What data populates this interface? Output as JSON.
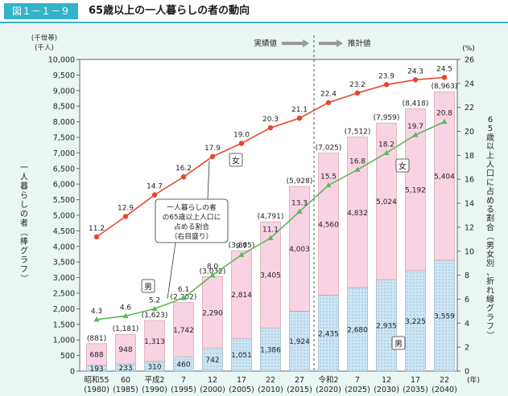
{
  "header": {
    "figure_label": "図１－１－９",
    "title": "65歳以上の一人暮らしの者の動向"
  },
  "chart_data": {
    "type": "bar+line",
    "categories": [
      {
        "era": "昭和55",
        "year": "(1980)"
      },
      {
        "era": "60",
        "year": "(1985)"
      },
      {
        "era": "平成2",
        "year": "(1990)"
      },
      {
        "era": "7",
        "year": "(1995)"
      },
      {
        "era": "12",
        "year": "(2000)"
      },
      {
        "era": "17",
        "year": "(2005)"
      },
      {
        "era": "22",
        "year": "(2010)"
      },
      {
        "era": "27",
        "year": "(2015)"
      },
      {
        "era": "令和2",
        "year": "(2020)"
      },
      {
        "era": "7",
        "year": "(2025)"
      },
      {
        "era": "12",
        "year": "(2030)"
      },
      {
        "era": "17",
        "year": "(2035)"
      },
      {
        "era": "22",
        "year": "(2040)"
      }
    ],
    "x_unit": "(年)",
    "bars": {
      "male": [
        193,
        233,
        310,
        460,
        742,
        1051,
        1386,
        1924,
        2435,
        2680,
        2935,
        3225,
        3559
      ],
      "female": [
        688,
        948,
        1313,
        1742,
        2290,
        2814,
        3405,
        4003,
        4560,
        4832,
        5024,
        5192,
        5404
      ],
      "total_labels": [
        "(881)",
        "(1,181)",
        "(1,623)",
        "(2,202)",
        "(3,032)",
        "(3,865)",
        "(4,791)",
        "(5,928)",
        "(7,025)",
        "(7,512)",
        "(7,959)",
        "(8,418)",
        "(8,963)"
      ],
      "male_labels": [
        "193",
        "233",
        "310",
        "460",
        "742",
        "1,051",
        "1,386",
        "1,924",
        "2,435",
        "2,680",
        "2,935",
        "3,225",
        "3,559"
      ],
      "female_labels": [
        "688",
        "948",
        "1,313",
        "1,742",
        "2,290",
        "2,814",
        "3,405",
        "4,003",
        "4,560",
        "4,832",
        "5,024",
        "5,192",
        "5,404"
      ],
      "male_color": "#cfe6f4",
      "female_color": "#f9d3e4"
    },
    "lines": {
      "female": [
        11.2,
        12.9,
        14.7,
        16.2,
        17.9,
        19.0,
        20.3,
        21.1,
        22.4,
        23.2,
        23.9,
        24.3,
        24.5
      ],
      "male": [
        4.3,
        4.6,
        5.2,
        6.1,
        8.0,
        9.7,
        11.1,
        13.3,
        15.5,
        16.8,
        18.2,
        19.7,
        20.8
      ],
      "female_labels": [
        "11.2",
        "12.9",
        "14.7",
        "16.2",
        "17.9",
        "19.0",
        "20.3",
        "21.1",
        "22.4",
        "23.2",
        "23.9",
        "24.3",
        "24.5"
      ],
      "male_labels": [
        "4.3",
        "4.6",
        "5.2",
        "6.1",
        "8.0",
        "9.7",
        "11.1",
        "13.3",
        "15.5",
        "16.8",
        "18.2",
        "19.7",
        "20.8"
      ],
      "female_color": "#e8452c",
      "male_color": "#5cb85c"
    },
    "left_axis": {
      "unit_line1": "(千世帯)",
      "unit_line2": "(千人)",
      "label": "一人暮らしの者（棒グラフ）",
      "range": [
        0,
        10000
      ],
      "ticks": [
        "0",
        "500",
        "1,000",
        "1,500",
        "2,000",
        "2,500",
        "3,000",
        "3,500",
        "4,000",
        "4,500",
        "5,000",
        "5,500",
        "6,000",
        "6,500",
        "7,000",
        "7,500",
        "8,000",
        "8,500",
        "9,000",
        "9,500",
        "10,000"
      ]
    },
    "right_axis": {
      "unit": "(%)",
      "label": "65歳以上人口に占める割合（男女別、折れ線グラフ）",
      "range": [
        0,
        26
      ],
      "ticks": [
        "0",
        "2",
        "4",
        "6",
        "8",
        "10",
        "12",
        "14",
        "16",
        "18",
        "20",
        "22",
        "24",
        "26"
      ]
    },
    "annotations": {
      "actual": "実績値",
      "projected": "推計値",
      "female_tag": "女",
      "male_tag": "男",
      "callout_lines": [
        "一人暮らしの者",
        "の65歳以上人口に",
        "占める割合",
        "（右目盛り）"
      ]
    },
    "grid": false
  }
}
